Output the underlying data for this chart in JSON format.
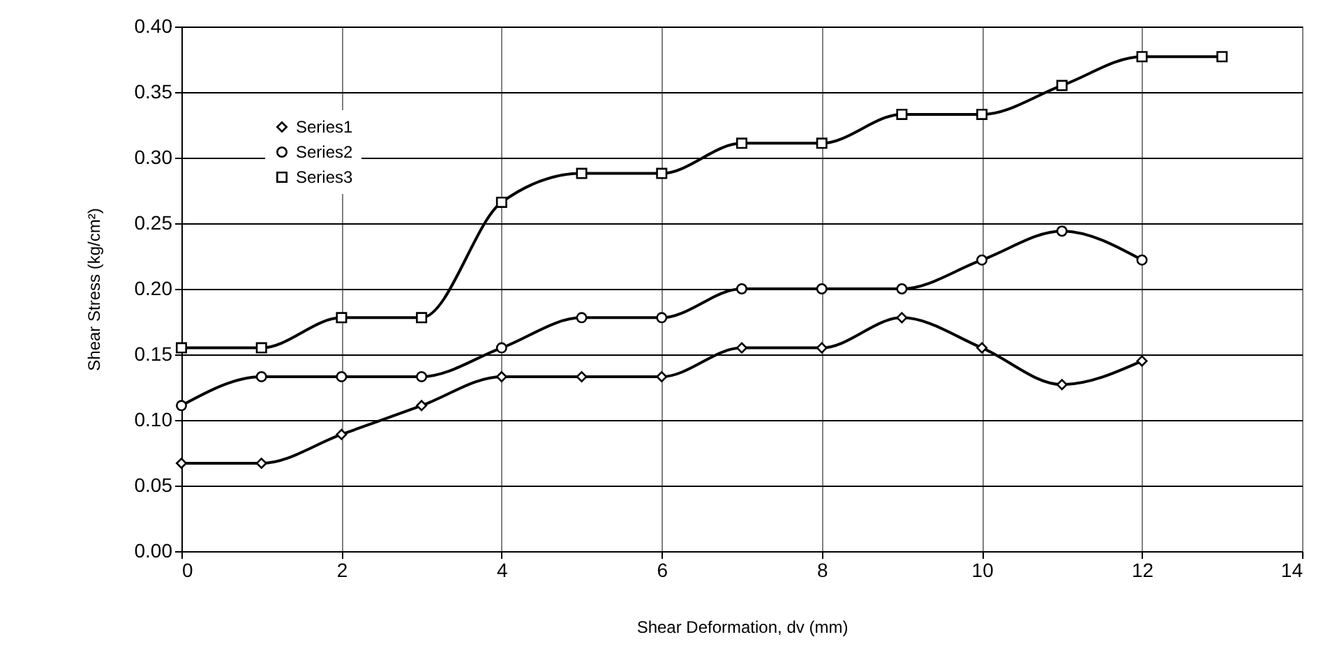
{
  "chart_data": {
    "type": "line",
    "xlabel": "Shear Deformation, dv (mm)",
    "ylabel": "Shear Stress (kg/cm²)",
    "xlim": [
      0,
      14
    ],
    "xticks": [
      0,
      2,
      4,
      6,
      8,
      10,
      12,
      14
    ],
    "ylim": [
      0,
      0.4
    ],
    "yticks": [
      {
        "value": 0,
        "label": "0.00"
      },
      0.05,
      {
        "value": 0.1,
        "label": "0.10"
      },
      0.15,
      {
        "value": 0.2,
        "label": "0.20"
      },
      0.25,
      {
        "value": 0.3,
        "label": "0.30"
      },
      0.35,
      {
        "value": 0.4,
        "label": "0.40"
      }
    ],
    "grid": true,
    "legend": "top left",
    "line_style": "solid",
    "series": [
      {
        "name": "Series1",
        "color": "#000000",
        "marker": "diamond",
        "x": [
          0,
          1,
          2,
          3,
          4,
          5,
          6,
          7,
          8,
          9,
          10,
          11,
          12
        ],
        "values": [
          0.067,
          0.067,
          0.089,
          0.111,
          0.133,
          0.133,
          0.133,
          0.155,
          0.155,
          0.178,
          0.155,
          0.127,
          0.145
        ]
      },
      {
        "name": "Series2",
        "color": "#000000",
        "marker": "circle",
        "x": [
          0,
          1,
          2,
          3,
          4,
          5,
          6,
          7,
          8,
          9,
          10,
          11,
          12
        ],
        "values": [
          0.111,
          0.133,
          0.133,
          0.133,
          0.155,
          0.178,
          0.178,
          0.2,
          0.2,
          0.2,
          0.222,
          0.244,
          0.222
        ]
      },
      {
        "name": "Series3",
        "color": "#000000",
        "marker": "square",
        "x": [
          0,
          1,
          2,
          3,
          4,
          5,
          6,
          7,
          8,
          9,
          10,
          11,
          12,
          13
        ],
        "values": [
          0.155,
          0.155,
          0.178,
          0.178,
          0.266,
          0.288,
          0.288,
          0.311,
          0.311,
          0.333,
          0.333,
          0.355,
          0.377,
          0.377
        ]
      }
    ]
  }
}
